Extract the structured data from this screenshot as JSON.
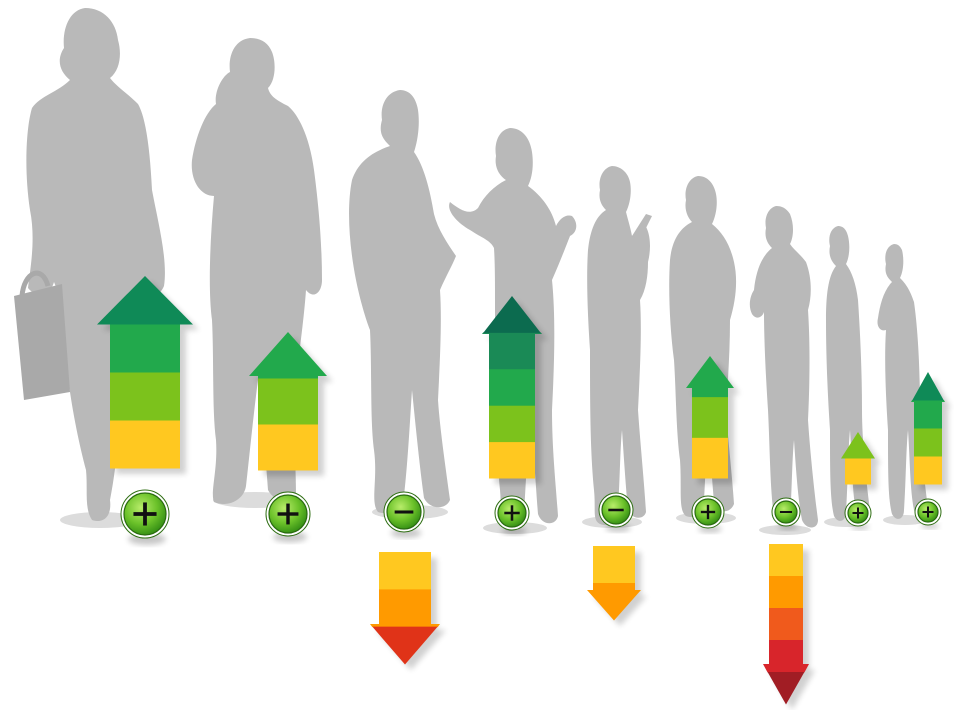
{
  "image": {
    "background": "#ffffff",
    "silhouette_color": "#b9b9b9",
    "silhouette_shade": "#a9a9a9"
  },
  "people": [
    {
      "badge": "plus",
      "arrow": "up",
      "bands": [
        "#ffc820",
        "#7cc21c",
        "#22a94c",
        "#0f8a57"
      ]
    },
    {
      "badge": "plus",
      "arrow": "up",
      "bands": [
        "#ffc820",
        "#7cc21c",
        "#22a94c"
      ]
    },
    {
      "badge": "minus",
      "arrow": "down",
      "bands": [
        "#ffc820",
        "#ff9a00",
        "#e03318"
      ]
    },
    {
      "badge": "plus",
      "arrow": "up",
      "bands": [
        "#ffc820",
        "#7cc21c",
        "#22a94c",
        "#1a8a56",
        "#0c6b4f"
      ]
    },
    {
      "badge": "minus",
      "arrow": "down",
      "bands": [
        "#ffc820",
        "#ff9a00"
      ]
    },
    {
      "badge": "plus",
      "arrow": "up",
      "bands": [
        "#ffc820",
        "#7cc21c",
        "#22a94c"
      ]
    },
    {
      "badge": "minus",
      "arrow": "down",
      "bands": [
        "#ffc820",
        "#ff9a00",
        "#f05a1c",
        "#d8252b",
        "#a11d24"
      ]
    },
    {
      "badge": "plus",
      "arrow": "up",
      "bands": [
        "#ffc820",
        "#7cc21c"
      ]
    },
    {
      "badge": "plus",
      "arrow": "up",
      "bands": [
        "#ffc820",
        "#7cc21c",
        "#22a94c",
        "#0f8a57"
      ]
    }
  ]
}
